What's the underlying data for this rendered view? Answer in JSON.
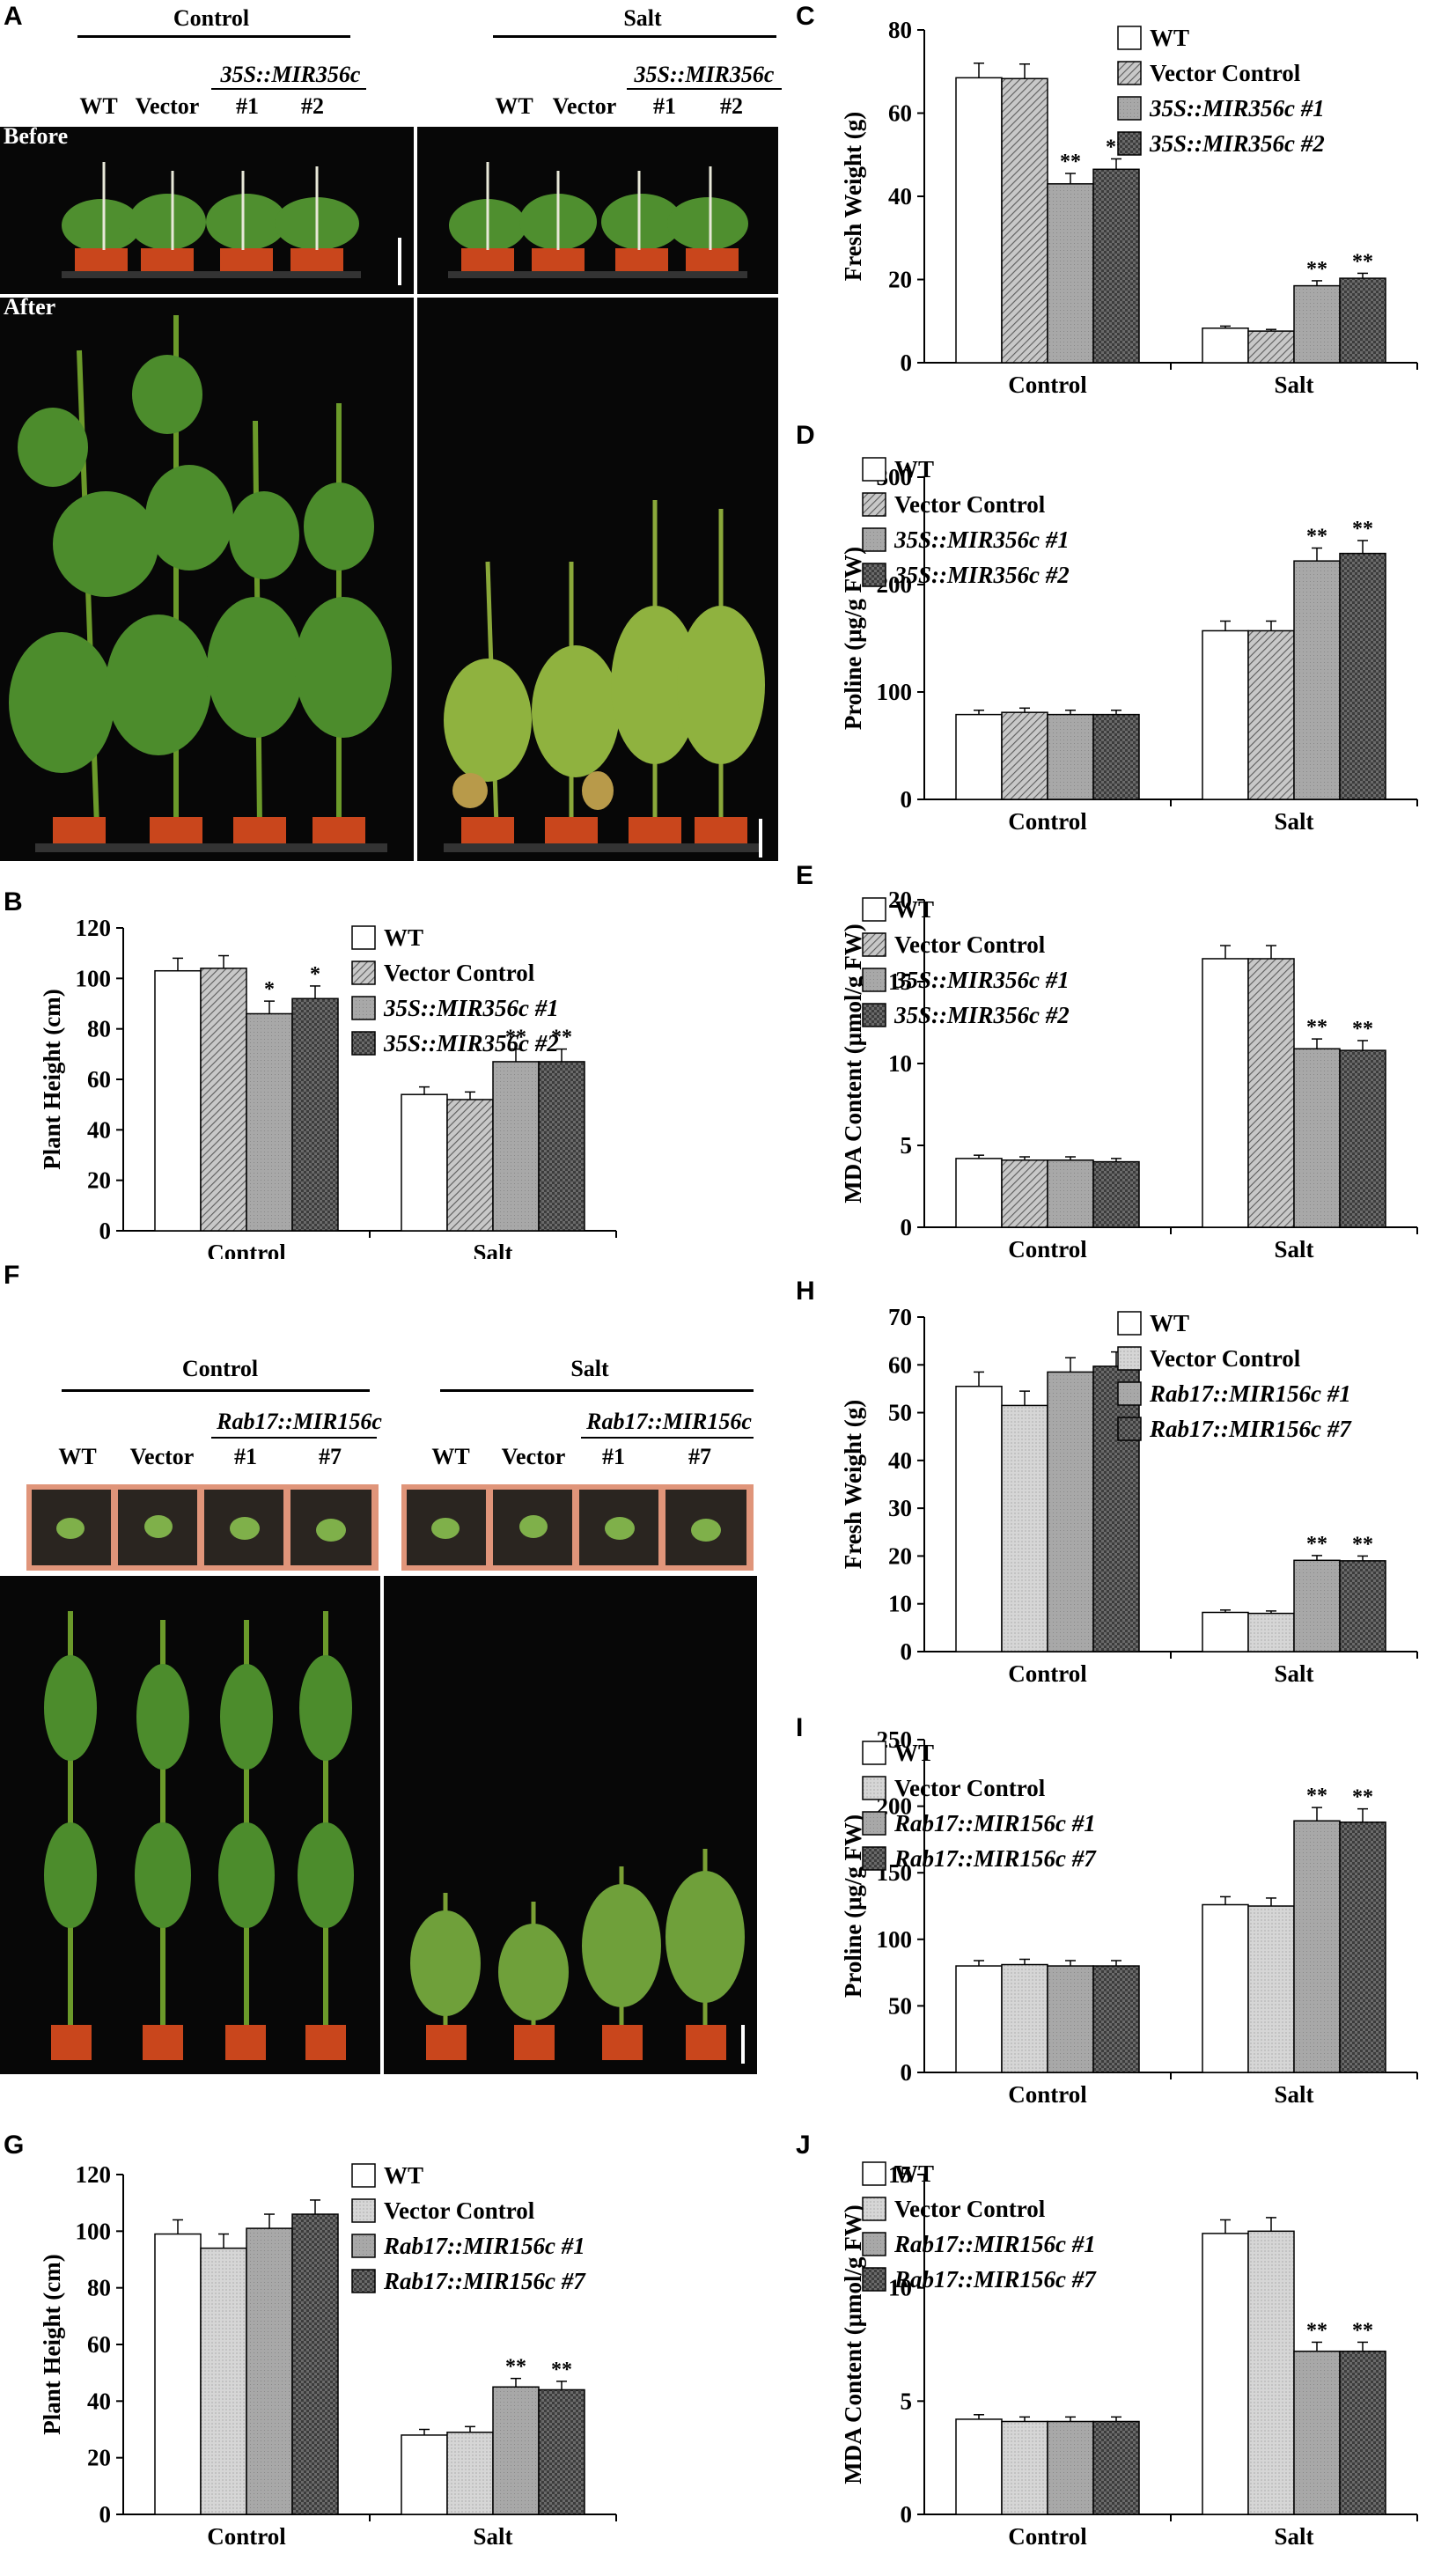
{
  "panels": {
    "A": "A",
    "B": "B",
    "C": "C",
    "D": "D",
    "E": "E",
    "F": "F",
    "G": "G",
    "H": "H",
    "I": "I",
    "J": "J"
  },
  "photo_a": {
    "control": "Control",
    "salt": "Salt",
    "transgene": "35S::MIR356c",
    "wt": "WT",
    "vector": "Vector",
    "line1": "#1",
    "line2": "#2",
    "before": "Before",
    "after": "After"
  },
  "photo_f": {
    "control": "Control",
    "salt": "Salt",
    "transgene": "Rab17::MIR156c",
    "wt": "WT",
    "vector": "Vector",
    "line1": "#1",
    "line2": "#7"
  },
  "colors": {
    "wt": "#ffffff",
    "vector_striped": "#9a9a9a",
    "vector_light": "#cfcfcf",
    "line1": "#a6a6a6",
    "line2_dark": "#5a5a5a",
    "line2_check": "#3a3a3a",
    "photo_bg": "#070707",
    "leaf": "#4f8f2f",
    "pot": "#c9461c"
  },
  "chart_data": [
    {
      "id": "C",
      "type": "bar",
      "categories": [
        "Control",
        "Salt"
      ],
      "series": [
        {
          "name": "WT",
          "values": [
            68.5,
            8.3
          ],
          "err": [
            3.5,
            0.5
          ],
          "sig": [
            "",
            ""
          ]
        },
        {
          "name": "Vector Control",
          "values": [
            68.3,
            7.6
          ],
          "err": [
            3.5,
            0.4
          ],
          "sig": [
            "",
            ""
          ]
        },
        {
          "name": "35S::MIR356c #1",
          "values": [
            43,
            18.5
          ],
          "err": [
            2.5,
            1.2
          ],
          "sig": [
            "**",
            "**"
          ]
        },
        {
          "name": "35S::MIR356c #2",
          "values": [
            46.5,
            20.3
          ],
          "err": [
            2.5,
            1.2
          ],
          "sig": [
            "**",
            "**"
          ]
        }
      ],
      "ylabel": "Fresh Weight (g)",
      "ylim": [
        0,
        80
      ],
      "yticks": [
        0,
        20,
        40,
        60,
        80
      ],
      "legend": "top-right"
    },
    {
      "id": "D",
      "type": "bar",
      "categories": [
        "Control",
        "Salt"
      ],
      "series": [
        {
          "name": "WT",
          "values": [
            79,
            157
          ],
          "err": [
            4,
            9
          ],
          "sig": [
            "",
            ""
          ]
        },
        {
          "name": "Vector Control",
          "values": [
            81,
            157
          ],
          "err": [
            4,
            9
          ],
          "sig": [
            "",
            ""
          ]
        },
        {
          "name": "35S::MIR356c #1",
          "values": [
            79,
            222
          ],
          "err": [
            4,
            12
          ],
          "sig": [
            "",
            "**"
          ]
        },
        {
          "name": "35S::MIR356c #2",
          "values": [
            79,
            229
          ],
          "err": [
            4,
            12
          ],
          "sig": [
            "",
            "**"
          ]
        }
      ],
      "ylabel": "Proline (μg/g FW)",
      "ylim": [
        0,
        300
      ],
      "yticks": [
        0,
        100,
        200,
        300
      ],
      "legend": "top-left"
    },
    {
      "id": "E",
      "type": "bar",
      "categories": [
        "Control",
        "Salt"
      ],
      "series": [
        {
          "name": "WT",
          "values": [
            4.2,
            16.4
          ],
          "err": [
            0.2,
            0.8
          ],
          "sig": [
            "",
            ""
          ]
        },
        {
          "name": "Vector Control",
          "values": [
            4.1,
            16.4
          ],
          "err": [
            0.2,
            0.8
          ],
          "sig": [
            "",
            ""
          ]
        },
        {
          "name": "35S::MIR356c #1",
          "values": [
            4.1,
            10.9
          ],
          "err": [
            0.2,
            0.6
          ],
          "sig": [
            "",
            "**"
          ]
        },
        {
          "name": "35S::MIR356c #2",
          "values": [
            4.0,
            10.8
          ],
          "err": [
            0.2,
            0.6
          ],
          "sig": [
            "",
            "**"
          ]
        }
      ],
      "ylabel": "MDA Content (μmol/g FW)",
      "ylim": [
        0,
        20
      ],
      "yticks": [
        0,
        5,
        10,
        15,
        20
      ],
      "legend": "top-left"
    },
    {
      "id": "B",
      "type": "bar",
      "categories": [
        "Control",
        "Salt"
      ],
      "series": [
        {
          "name": "WT",
          "values": [
            103,
            54
          ],
          "err": [
            5,
            3
          ],
          "sig": [
            "",
            ""
          ]
        },
        {
          "name": "Vector Control",
          "values": [
            104,
            52
          ],
          "err": [
            5,
            3
          ],
          "sig": [
            "",
            ""
          ]
        },
        {
          "name": "35S::MIR356c #1",
          "values": [
            86,
            67
          ],
          "err": [
            5,
            5
          ],
          "sig": [
            "*",
            "**"
          ]
        },
        {
          "name": "35S::MIR356c #2",
          "values": [
            92,
            67
          ],
          "err": [
            5,
            5
          ],
          "sig": [
            "*",
            "**"
          ]
        }
      ],
      "ylabel": "Plant Height (cm)",
      "ylim": [
        0,
        120
      ],
      "yticks": [
        0,
        20,
        40,
        60,
        80,
        100,
        120
      ],
      "legend": "top-right"
    },
    {
      "id": "H",
      "type": "bar",
      "categories": [
        "Control",
        "Salt"
      ],
      "series": [
        {
          "name": "WT",
          "values": [
            55.5,
            8.2
          ],
          "err": [
            3,
            0.5
          ],
          "sig": [
            "",
            ""
          ]
        },
        {
          "name": "Vector Control",
          "values": [
            51.5,
            8.0
          ],
          "err": [
            3,
            0.5
          ],
          "sig": [
            "",
            ""
          ]
        },
        {
          "name": "Rab17::MIR156c #1",
          "values": [
            58.5,
            19.1
          ],
          "err": [
            3,
            1
          ],
          "sig": [
            "",
            "**"
          ]
        },
        {
          "name": "Rab17::MIR156c #7",
          "values": [
            59.7,
            19.0
          ],
          "err": [
            3,
            1
          ],
          "sig": [
            "",
            "**"
          ]
        }
      ],
      "ylabel": "Fresh Weight (g)",
      "ylim": [
        0,
        70
      ],
      "yticks": [
        0,
        10,
        20,
        30,
        40,
        50,
        60,
        70
      ],
      "legend": "top-right"
    },
    {
      "id": "I",
      "type": "bar",
      "categories": [
        "Control",
        "Salt"
      ],
      "series": [
        {
          "name": "WT",
          "values": [
            80,
            126
          ],
          "err": [
            4,
            6
          ],
          "sig": [
            "",
            ""
          ]
        },
        {
          "name": "Vector Control",
          "values": [
            81,
            125
          ],
          "err": [
            4,
            6
          ],
          "sig": [
            "",
            ""
          ]
        },
        {
          "name": "Rab17::MIR156c #1",
          "values": [
            80,
            189
          ],
          "err": [
            4,
            10
          ],
          "sig": [
            "",
            "**"
          ]
        },
        {
          "name": "Rab17::MIR156c #7",
          "values": [
            80,
            188
          ],
          "err": [
            4,
            10
          ],
          "sig": [
            "",
            "**"
          ]
        }
      ],
      "ylabel": "Proline (μg/g FW)",
      "ylim": [
        0,
        250
      ],
      "yticks": [
        0,
        50,
        100,
        150,
        200,
        250
      ],
      "legend": "top-left"
    },
    {
      "id": "G",
      "type": "bar",
      "categories": [
        "Control",
        "Salt"
      ],
      "series": [
        {
          "name": "WT",
          "values": [
            99,
            28
          ],
          "err": [
            5,
            2
          ],
          "sig": [
            "",
            ""
          ]
        },
        {
          "name": "Vector Control",
          "values": [
            94,
            29
          ],
          "err": [
            5,
            2
          ],
          "sig": [
            "",
            ""
          ]
        },
        {
          "name": "Rab17::MIR156c #1",
          "values": [
            101,
            45
          ],
          "err": [
            5,
            3
          ],
          "sig": [
            "",
            "**"
          ]
        },
        {
          "name": "Rab17::MIR156c #7",
          "values": [
            106,
            44
          ],
          "err": [
            5,
            3
          ],
          "sig": [
            "",
            "**"
          ]
        }
      ],
      "ylabel": "Plant Height (cm)",
      "ylim": [
        0,
        120
      ],
      "yticks": [
        0,
        20,
        40,
        60,
        80,
        100,
        120
      ],
      "legend": "top-right"
    },
    {
      "id": "J",
      "type": "bar",
      "categories": [
        "Control",
        "Salt"
      ],
      "series": [
        {
          "name": "WT",
          "values": [
            4.2,
            12.4
          ],
          "err": [
            0.2,
            0.6
          ],
          "sig": [
            "",
            ""
          ]
        },
        {
          "name": "Vector Control",
          "values": [
            4.1,
            12.5
          ],
          "err": [
            0.2,
            0.6
          ],
          "sig": [
            "",
            ""
          ]
        },
        {
          "name": "Rab17::MIR156c #1",
          "values": [
            4.1,
            7.2
          ],
          "err": [
            0.2,
            0.4
          ],
          "sig": [
            "",
            "**"
          ]
        },
        {
          "name": "Rab17::MIR156c #7",
          "values": [
            4.1,
            7.2
          ],
          "err": [
            0.2,
            0.4
          ],
          "sig": [
            "",
            "**"
          ]
        }
      ],
      "ylabel": "MDA Content (μmol/g FW)",
      "ylim": [
        0,
        15
      ],
      "yticks": [
        0,
        5,
        10,
        15
      ],
      "legend": "top-left"
    }
  ]
}
